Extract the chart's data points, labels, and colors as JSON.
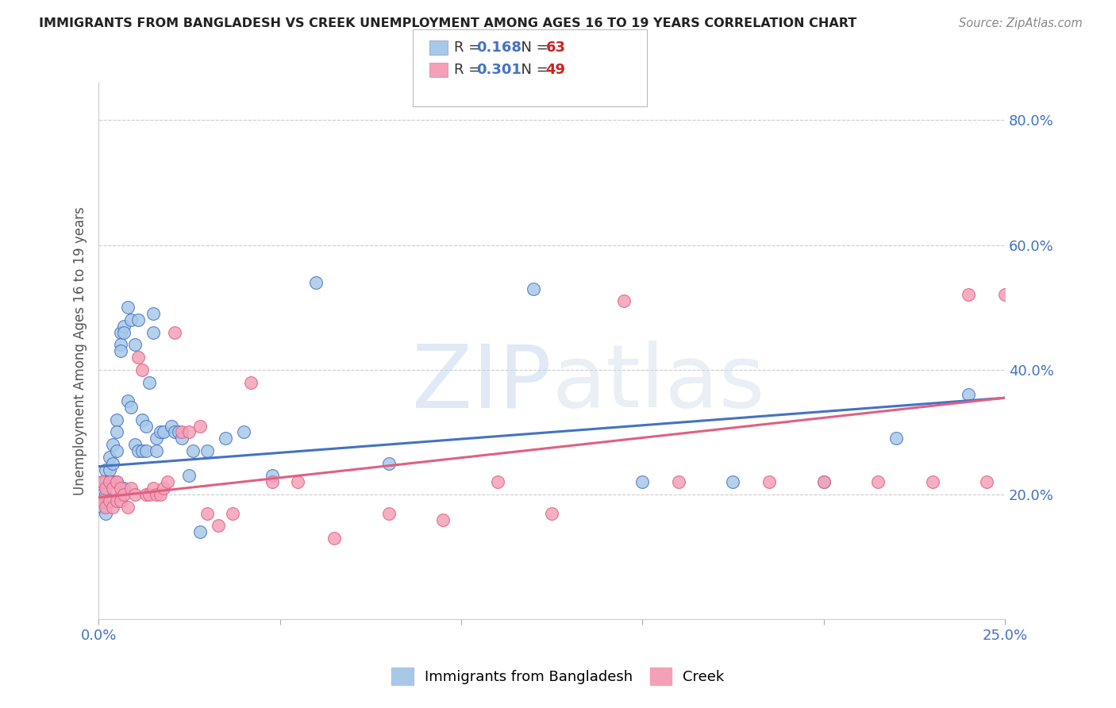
{
  "title": "IMMIGRANTS FROM BANGLADESH VS CREEK UNEMPLOYMENT AMONG AGES 16 TO 19 YEARS CORRELATION CHART",
  "source": "Source: ZipAtlas.com",
  "ylabel": "Unemployment Among Ages 16 to 19 years",
  "series1_label": "Immigrants from Bangladesh",
  "series2_label": "Creek",
  "r1": "0.168",
  "n1": "63",
  "r2": "0.301",
  "n2": "49",
  "color1": "#a8c8e8",
  "color2": "#f4a0b8",
  "line_color1": "#4472c4",
  "line_color2": "#e06080",
  "background": "#ffffff",
  "grid_color": "#cccccc",
  "xlim": [
    0.0,
    0.25
  ],
  "ylim": [
    0.0,
    0.86
  ],
  "bangladesh_x": [
    0.001,
    0.001,
    0.001,
    0.002,
    0.002,
    0.002,
    0.002,
    0.003,
    0.003,
    0.003,
    0.003,
    0.004,
    0.004,
    0.004,
    0.005,
    0.005,
    0.005,
    0.005,
    0.006,
    0.006,
    0.006,
    0.006,
    0.007,
    0.007,
    0.007,
    0.008,
    0.008,
    0.009,
    0.009,
    0.01,
    0.01,
    0.011,
    0.011,
    0.012,
    0.012,
    0.013,
    0.013,
    0.014,
    0.015,
    0.015,
    0.016,
    0.016,
    0.017,
    0.018,
    0.02,
    0.021,
    0.022,
    0.023,
    0.025,
    0.026,
    0.028,
    0.03,
    0.035,
    0.04,
    0.048,
    0.06,
    0.08,
    0.12,
    0.15,
    0.175,
    0.2,
    0.22,
    0.24
  ],
  "bangladesh_y": [
    0.22,
    0.2,
    0.18,
    0.24,
    0.22,
    0.2,
    0.17,
    0.26,
    0.24,
    0.22,
    0.19,
    0.28,
    0.25,
    0.22,
    0.32,
    0.3,
    0.27,
    0.22,
    0.46,
    0.44,
    0.43,
    0.2,
    0.47,
    0.46,
    0.21,
    0.5,
    0.35,
    0.48,
    0.34,
    0.44,
    0.28,
    0.48,
    0.27,
    0.32,
    0.27,
    0.31,
    0.27,
    0.38,
    0.49,
    0.46,
    0.29,
    0.27,
    0.3,
    0.3,
    0.31,
    0.3,
    0.3,
    0.29,
    0.23,
    0.27,
    0.14,
    0.27,
    0.29,
    0.3,
    0.23,
    0.54,
    0.25,
    0.53,
    0.22,
    0.22,
    0.22,
    0.29,
    0.36
  ],
  "creek_x": [
    0.001,
    0.001,
    0.002,
    0.002,
    0.003,
    0.003,
    0.004,
    0.004,
    0.005,
    0.005,
    0.006,
    0.006,
    0.007,
    0.008,
    0.009,
    0.01,
    0.011,
    0.012,
    0.013,
    0.014,
    0.015,
    0.016,
    0.017,
    0.018,
    0.019,
    0.021,
    0.023,
    0.025,
    0.028,
    0.03,
    0.033,
    0.037,
    0.042,
    0.048,
    0.055,
    0.065,
    0.08,
    0.095,
    0.11,
    0.125,
    0.145,
    0.16,
    0.185,
    0.2,
    0.215,
    0.23,
    0.24,
    0.245,
    0.25
  ],
  "creek_y": [
    0.22,
    0.19,
    0.21,
    0.18,
    0.22,
    0.19,
    0.21,
    0.18,
    0.22,
    0.19,
    0.21,
    0.19,
    0.2,
    0.18,
    0.21,
    0.2,
    0.42,
    0.4,
    0.2,
    0.2,
    0.21,
    0.2,
    0.2,
    0.21,
    0.22,
    0.46,
    0.3,
    0.3,
    0.31,
    0.17,
    0.15,
    0.17,
    0.38,
    0.22,
    0.22,
    0.13,
    0.17,
    0.16,
    0.22,
    0.17,
    0.51,
    0.22,
    0.22,
    0.22,
    0.22,
    0.22,
    0.52,
    0.22,
    0.52
  ],
  "line1_x0": 0.0,
  "line1_y0": 0.245,
  "line1_x1": 0.25,
  "line1_y1": 0.355,
  "line2_x0": 0.0,
  "line2_y0": 0.195,
  "line2_x1": 0.25,
  "line2_y1": 0.355
}
